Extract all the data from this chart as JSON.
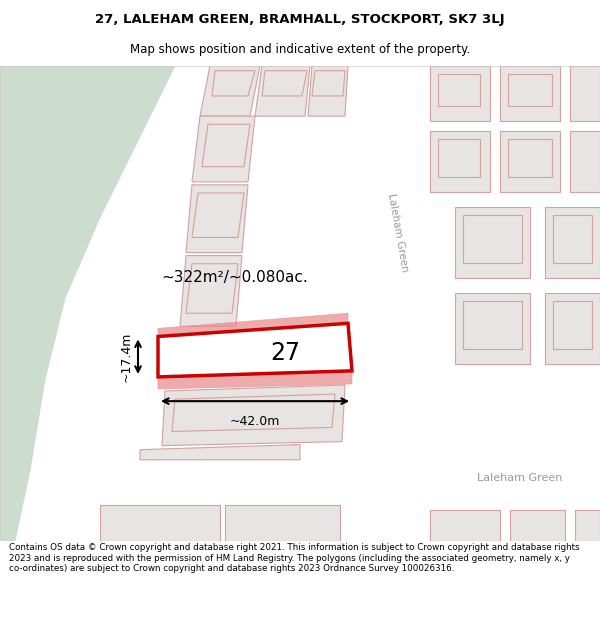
{
  "title_line1": "27, LALEHAM GREEN, BRAMHALL, STOCKPORT, SK7 3LJ",
  "title_line2": "Map shows position and indicative extent of the property.",
  "footer_text": "Contains OS data © Crown copyright and database right 2021. This information is subject to Crown copyright and database rights 2023 and is reproduced with the permission of HM Land Registry. The polygons (including the associated geometry, namely x, y co-ordinates) are subject to Crown copyright and database rights 2023 Ordnance Survey 100026316.",
  "map_bg": "#f9f5f5",
  "green_area_color": "#ccddd0",
  "road_color": "#ffffff",
  "plot_outline_color": "#cc0000",
  "building_fill": "#e8e4e4",
  "building_outline": "#d4a0a0",
  "plot_line_color": "#e88888",
  "dim_color": "#000000",
  "area_text": "~322m²/~0.080ac.",
  "width_text": "~42.0m",
  "height_text": "~17.4m",
  "plot_number": "27",
  "street_label_1": "Laleham Green",
  "street_label_2": "Laleham Green"
}
